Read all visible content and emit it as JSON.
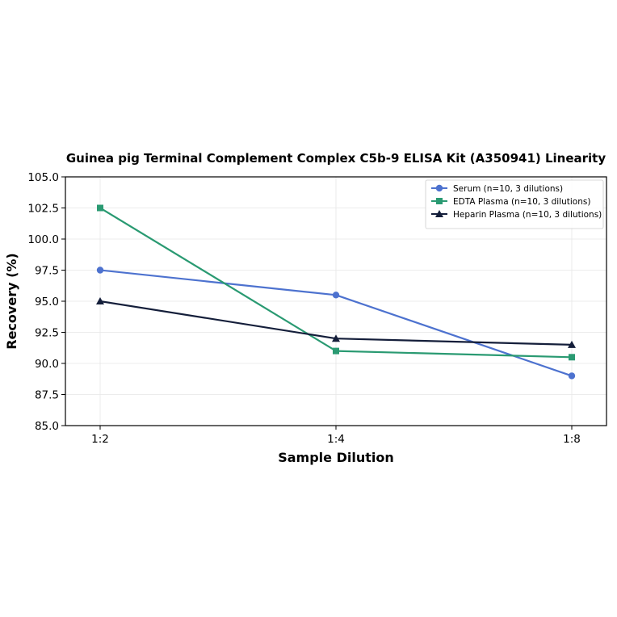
{
  "chart_data": {
    "type": "line",
    "title": "Guinea pig Terminal Complement Complex C5b-9 ELISA Kit (A350941) Linearity",
    "xlabel": "Sample Dilution",
    "ylabel": "Recovery (%)",
    "categories": [
      "1:2",
      "1:4",
      "1:8"
    ],
    "ylim": [
      85.0,
      105.0
    ],
    "yticks": [
      "85.0",
      "87.5",
      "90.0",
      "92.5",
      "95.0",
      "97.5",
      "100.0",
      "102.5",
      "105.0"
    ],
    "grid": true,
    "legend_position": "top-right",
    "series": [
      {
        "name": "Serum (n=10, 3 dilutions)",
        "values": [
          97.5,
          95.5,
          89.0
        ],
        "color": "#4d72cf",
        "marker": "circle"
      },
      {
        "name": "EDTA Plasma (n=10, 3 dilutions)",
        "values": [
          102.5,
          91.0,
          90.5
        ],
        "color": "#2a9a72",
        "marker": "square"
      },
      {
        "name": "Heparin Plasma (n=10, 3 dilutions)",
        "values": [
          95.0,
          92.0,
          91.5
        ],
        "color": "#141e3a",
        "marker": "triangle"
      }
    ]
  }
}
